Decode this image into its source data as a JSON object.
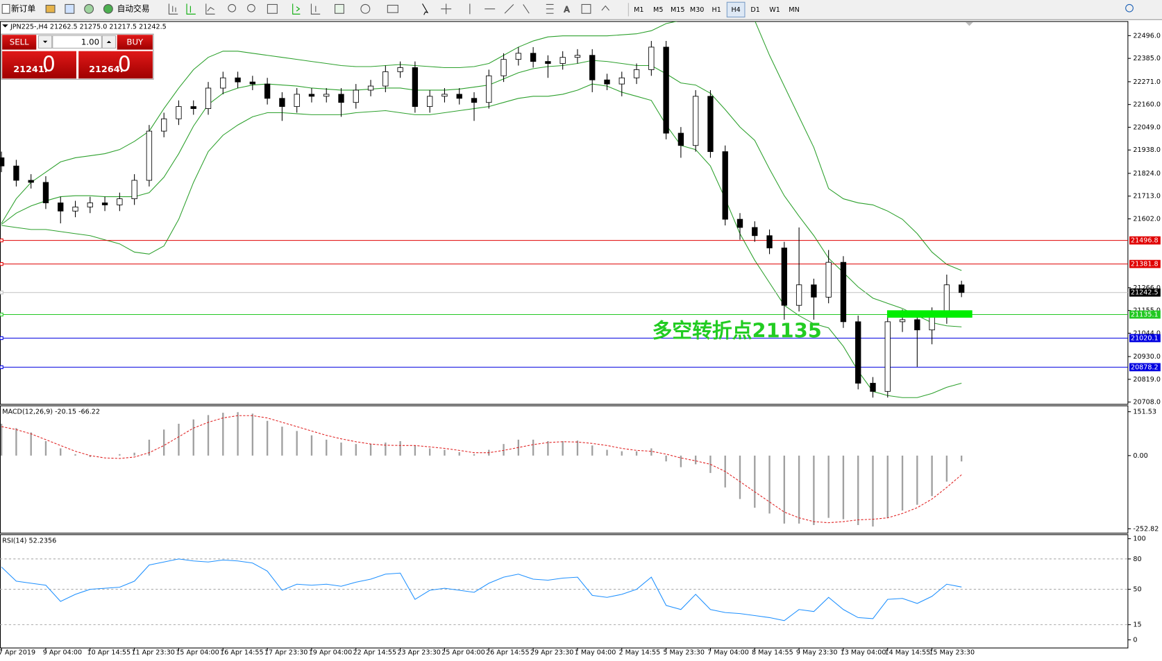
{
  "toolbar": {
    "new_order": "新订单",
    "auto_trading": "自动交易",
    "timeframes": [
      "M1",
      "M5",
      "M15",
      "M30",
      "H1",
      "H4",
      "D1",
      "W1",
      "MN"
    ],
    "active": "H4"
  },
  "trade_panel": {
    "sell": "SELL",
    "buy": "BUY",
    "lots": "1.00",
    "sell_price": "21241.",
    "sell_big": "0",
    "buy_price": "21264.",
    "buy_big": "0"
  },
  "chart_data": [
    {
      "type": "candlestick",
      "title": "JPN225-,H4  21262.5 21275.0 21217.5 21242.5",
      "categories": [
        "7 Apr 2019",
        null,
        null,
        "9 Apr 04:00",
        null,
        null,
        "10 Apr 14:55",
        null,
        null,
        "11 Apr 23:30",
        null,
        null,
        "15 Apr 04:00",
        null,
        null,
        "16 Apr 14:55",
        null,
        null,
        "17 Apr 23:30",
        null,
        null,
        "19 Apr 04:00",
        null,
        null,
        "22 Apr 14:55",
        null,
        null,
        "23 Apr 23:30",
        null,
        null,
        "25 Apr 04:00",
        null,
        null,
        "26 Apr 14:55",
        null,
        null,
        "29 Apr 23:30",
        null,
        null,
        "1 May 04:00",
        null,
        null,
        "2 May 14:55",
        null,
        null,
        "5 May 23:30",
        null,
        null,
        "7 May 04:00",
        null,
        null,
        "8 May 14:55",
        null,
        null,
        "9 May 23:30",
        null,
        null,
        "13 May 04:00",
        null,
        null,
        "14 May 14:55",
        null,
        null,
        "15 May 23:30",
        null,
        null
      ],
      "open": [
        21900,
        21860,
        21790,
        21780,
        21680,
        21640,
        21660,
        21680,
        21670,
        21700,
        21790,
        22030,
        22090,
        22150,
        22140,
        22240,
        22290,
        22270,
        22260,
        22190,
        22150,
        22210,
        22200,
        22210,
        22170,
        22230,
        22250,
        22320,
        22340,
        22150,
        22200,
        22210,
        22190,
        22170,
        22300,
        22380,
        22410,
        22370,
        22360,
        22390,
        22400,
        22280,
        22260,
        22290,
        22330,
        22440,
        22020,
        21960,
        22200,
        21930,
        21600,
        21560,
        21520,
        21460,
        21180,
        21280,
        21220,
        21390,
        21100,
        20800,
        20760,
        21100,
        21110,
        21060,
        21140,
        21280
      ],
      "high": [
        21930,
        21890,
        21820,
        21810,
        21710,
        21690,
        21710,
        21710,
        21730,
        21820,
        22060,
        22120,
        22180,
        22180,
        22270,
        22320,
        22320,
        22300,
        22290,
        22220,
        22240,
        22240,
        22240,
        22240,
        22260,
        22280,
        22350,
        22370,
        22370,
        22230,
        22240,
        22240,
        22220,
        22330,
        22410,
        22440,
        22440,
        22400,
        22420,
        22430,
        22430,
        22310,
        22320,
        22360,
        22470,
        22470,
        22050,
        22230,
        22230,
        21960,
        21630,
        21590,
        21550,
        21490,
        21560,
        21310,
        21450,
        21420,
        21130,
        20830,
        21130,
        21160,
        21140,
        21170,
        21330,
        21300
      ],
      "low": [
        21830,
        21760,
        21750,
        21650,
        21580,
        21610,
        21630,
        21640,
        21640,
        21670,
        21760,
        22000,
        22060,
        22110,
        22110,
        22210,
        22240,
        22230,
        22160,
        22080,
        22120,
        22170,
        22170,
        22100,
        22140,
        22200,
        22220,
        22290,
        22120,
        22120,
        22170,
        22160,
        22080,
        22140,
        22270,
        22350,
        22340,
        22290,
        22330,
        22360,
        22220,
        22230,
        22200,
        22260,
        22300,
        21990,
        21900,
        21930,
        21900,
        21570,
        21500,
        21490,
        21430,
        21110,
        21150,
        21110,
        21190,
        21070,
        20770,
        20730,
        20730,
        21050,
        20880,
        20990,
        21090,
        21220
      ],
      "close": [
        21860,
        21790,
        21780,
        21680,
        21640,
        21660,
        21680,
        21670,
        21700,
        21790,
        22030,
        22090,
        22150,
        22140,
        22240,
        22290,
        22270,
        22260,
        22190,
        22150,
        22210,
        22200,
        22210,
        22170,
        22230,
        22250,
        22320,
        22340,
        22150,
        22200,
        22210,
        22190,
        22170,
        22300,
        22380,
        22410,
        22370,
        22360,
        22390,
        22400,
        22280,
        22260,
        22290,
        22330,
        22440,
        22020,
        21960,
        22200,
        21930,
        21600,
        21560,
        21520,
        21460,
        21180,
        21280,
        21220,
        21390,
        21100,
        20800,
        20760,
        21100,
        21110,
        21060,
        21140,
        21280,
        21242.5
      ],
      "up_color": "#ffffff",
      "down_color": "#000000",
      "bands": [
        {
          "color": "#2ca02c",
          "values": [
            21580,
            21700,
            21780,
            21830,
            21880,
            21900,
            21910,
            21920,
            21940,
            21980,
            22030,
            22140,
            22240,
            22330,
            22390,
            22420,
            22420,
            22410,
            22400,
            22390,
            22380,
            22370,
            22360,
            22350,
            22345,
            22345,
            22350,
            22355,
            22350,
            22345,
            22340,
            22340,
            22345,
            22360,
            22400,
            22440,
            22470,
            22490,
            22495,
            22495,
            22495,
            22495,
            22500,
            22505,
            22520,
            22555,
            22570,
            22570,
            22570,
            22570,
            22570,
            22570,
            22400,
            22250,
            22100,
            21950,
            21750,
            21700,
            21680,
            21670,
            21640,
            21600,
            21530,
            21440,
            21380,
            21350
          ]
        },
        {
          "color": "#2ca02c",
          "values": [
            21575,
            21630,
            21665,
            21690,
            21710,
            21715,
            21715,
            21710,
            21710,
            21710,
            21730,
            21805,
            21920,
            22055,
            22160,
            22215,
            22240,
            22255,
            22260,
            22255,
            22250,
            22240,
            22235,
            22230,
            22230,
            22235,
            22240,
            22240,
            22230,
            22230,
            22230,
            22235,
            22245,
            22255,
            22285,
            22315,
            22335,
            22345,
            22350,
            22360,
            22375,
            22370,
            22360,
            22350,
            22350,
            22310,
            22265,
            22255,
            22215,
            22135,
            22050,
            21985,
            21845,
            21715,
            21615,
            21520,
            21410,
            21340,
            21270,
            21215,
            21190,
            21165,
            21130,
            21095,
            21080,
            21075
          ]
        },
        {
          "color": "#2ca02c",
          "values": [
            21570,
            21560,
            21550,
            21550,
            21540,
            21530,
            21520,
            21500,
            21480,
            21440,
            21430,
            21470,
            21600,
            21780,
            21930,
            22010,
            22060,
            22100,
            22120,
            22120,
            22115,
            22110,
            22110,
            22110,
            22120,
            22125,
            22130,
            22120,
            22110,
            22110,
            22120,
            22130,
            22140,
            22150,
            22170,
            22190,
            22200,
            22200,
            22210,
            22230,
            22260,
            22250,
            22220,
            22200,
            22180,
            22060,
            21960,
            21940,
            21860,
            21700,
            21530,
            21400,
            21290,
            21180,
            21130,
            21090,
            21070,
            20980,
            20860,
            20760,
            20740,
            20730,
            20730,
            20750,
            20780,
            20800
          ]
        }
      ],
      "ylim": [
        20697,
        22565
      ],
      "yticks": [
        {
          "value": 22496,
          "label": "22496.0"
        },
        {
          "value": 22385,
          "label": "22385.0"
        },
        {
          "value": 22271,
          "label": "22271.0"
        },
        {
          "value": 22160,
          "label": "22160.0"
        },
        {
          "value": 22049,
          "label": "22049.0"
        },
        {
          "value": 21938,
          "label": "21938.0"
        },
        {
          "value": 21824,
          "label": "21824.0"
        },
        {
          "value": 21713,
          "label": "21713.0"
        },
        {
          "value": 21602,
          "label": "21602.0"
        },
        {
          "value": 21266,
          "label": "21266.0"
        },
        {
          "value": 21155,
          "label": "21155.0"
        },
        {
          "value": 21044,
          "label": "21044.0"
        },
        {
          "value": 20930,
          "label": "20930.0"
        },
        {
          "value": 20819,
          "label": "20819.0"
        },
        {
          "value": 20708,
          "label": "20708.0"
        }
      ],
      "levels": [
        {
          "value": 21496.8,
          "color": "#e00000",
          "box": "#e00000"
        },
        {
          "value": 21381.8,
          "color": "#e00000",
          "box": "#e00000"
        },
        {
          "value": 21242.5,
          "color": "#c0c0c0",
          "box": "#000000"
        },
        {
          "value": 21135.1,
          "color": "#22c822",
          "box": "#22c822"
        },
        {
          "value": 21020.1,
          "color": "#0000e0",
          "box": "#0000e0"
        },
        {
          "value": 20878.2,
          "color": "#0000e0",
          "box": "#0000e0"
        }
      ],
      "annotation": "多空转折点21135",
      "annotation_color": "#22cc22"
    },
    {
      "type": "macd",
      "title": "MACD(12,26,9) -20.15 -66.22",
      "ylim": [
        -268,
        172
      ],
      "yticks": [
        151.53,
        {
          "value": 0,
          "label": "0.00"
        },
        -252.82
      ],
      "series": [
        {
          "color": "#a0a0a0",
          "values": [
            110,
            95,
            80,
            50,
            25,
            5,
            -5,
            0,
            5,
            10,
            55,
            90,
            110,
            125,
            140,
            148,
            150,
            145,
            120,
            100,
            85,
            70,
            55,
            45,
            40,
            40,
            45,
            50,
            35,
            25,
            20,
            12,
            5,
            20,
            40,
            55,
            55,
            50,
            50,
            52,
            35,
            20,
            15,
            15,
            25,
            -20,
            -40,
            -30,
            -60,
            -110,
            -150,
            -180,
            -200,
            -235,
            -235,
            -240,
            -215,
            -220,
            -240,
            -245,
            -215,
            -190,
            -170,
            -140,
            -90,
            -20.15
          ]
        },
        {
          "color": "#e02020",
          "values": [
            100,
            90,
            75,
            55,
            35,
            15,
            0,
            -8,
            -10,
            -5,
            10,
            35,
            65,
            95,
            115,
            130,
            138,
            138,
            130,
            115,
            100,
            85,
            70,
            58,
            48,
            40,
            36,
            35,
            35,
            30,
            25,
            18,
            10,
            10,
            18,
            28,
            38,
            45,
            48,
            47,
            42,
            35,
            25,
            18,
            15,
            5,
            -8,
            -18,
            -30,
            -55,
            -90,
            -125,
            -160,
            -195,
            -215,
            -228,
            -232,
            -228,
            -222,
            -220,
            -215,
            -200,
            -180,
            -150,
            -110,
            -66.22
          ]
        }
      ]
    },
    {
      "type": "rsi",
      "title": "RSI(14) 52.2356",
      "ylim": [
        -8,
        104
      ],
      "yticks": [
        100,
        80,
        50,
        15,
        0
      ],
      "levels": [
        80,
        50,
        15
      ],
      "color": "#1e90ff",
      "values": [
        72,
        58,
        56,
        54,
        38,
        45,
        50,
        51,
        52,
        58,
        74,
        77,
        80,
        78,
        77,
        79,
        78,
        76,
        68,
        49,
        55,
        54,
        55,
        53,
        57,
        60,
        65,
        66,
        40,
        49,
        51,
        49,
        47,
        56,
        62,
        65,
        60,
        59,
        61,
        62,
        44,
        42,
        45,
        50,
        62,
        34,
        30,
        45,
        30,
        27,
        26,
        24,
        22,
        19,
        30,
        28,
        42,
        30,
        22,
        21,
        40,
        41,
        36,
        43,
        55,
        52.2356
      ]
    }
  ]
}
